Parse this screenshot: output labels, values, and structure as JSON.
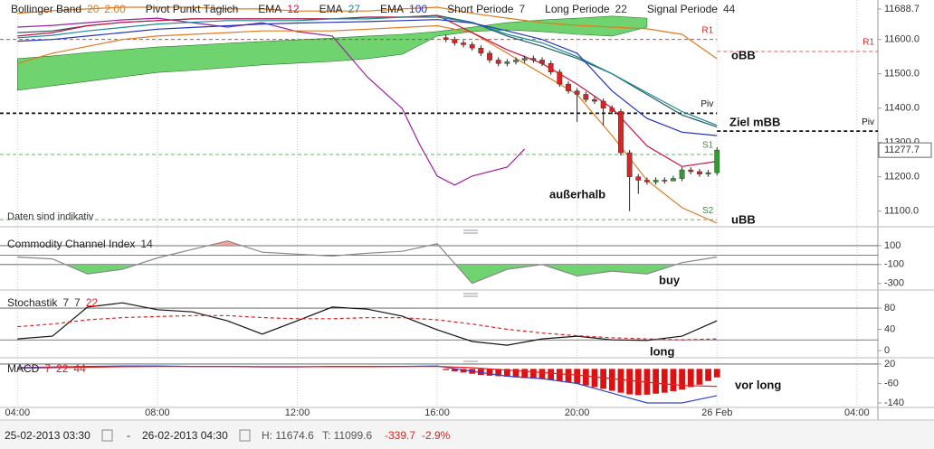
{
  "chart_data": [
    {
      "type": "candlestick",
      "xlim": [
        3.5,
        28.6
      ],
      "ylim": [
        11057,
        11715
      ],
      "yticks": [
        11688.7,
        {
          "value": 11600,
          "label": "11600.0"
        },
        {
          "value": 11500,
          "label": "11500.0"
        },
        {
          "value": 11400,
          "label": "11400.0"
        },
        {
          "value": 11300,
          "label": "11300.0"
        },
        {
          "value": 11200,
          "label": "11200.0"
        },
        {
          "value": 11100,
          "label": "11100.0"
        }
      ],
      "candles": {
        "up_color": "#2e9e2e",
        "down_color": "#dd2222",
        "x": [
          16.25,
          16.5,
          16.75,
          17,
          17.25,
          17.5,
          17.75,
          18,
          18.25,
          18.5,
          18.75,
          19,
          19.25,
          19.5,
          19.75,
          20,
          20.25,
          20.5,
          20.75,
          21,
          21.25,
          21.5,
          21.75,
          22,
          22.25,
          22.5,
          22.75,
          23,
          23.25,
          23.5,
          23.75,
          24
        ],
        "open": [
          11605,
          11600,
          11590,
          11585,
          11575,
          11560,
          11540,
          11530,
          11535,
          11540,
          11545,
          11540,
          11530,
          11505,
          11470,
          11450,
          11440,
          11425,
          11420,
          11400,
          11390,
          11270,
          11200,
          11190,
          11185,
          11190,
          11188,
          11195,
          11220,
          11215,
          11208,
          11212
        ],
        "high": [
          11613,
          11608,
          11598,
          11593,
          11583,
          11568,
          11548,
          11543,
          11548,
          11553,
          11553,
          11548,
          11538,
          11513,
          11478,
          11458,
          11448,
          11433,
          11428,
          11408,
          11398,
          11278,
          11208,
          11198,
          11198,
          11198,
          11203,
          11228,
          11228,
          11223,
          11220,
          11285.7
        ],
        "low": [
          11592,
          11582,
          11577,
          11567,
          11552,
          11532,
          11522,
          11522,
          11527,
          11532,
          11532,
          11522,
          11497,
          11462,
          11442,
          11360,
          11417,
          11412,
          11350,
          11382,
          11262,
          11100,
          11150,
          11177,
          11177,
          11180,
          11187,
          11187,
          11207,
          11200,
          11200,
          11204
        ],
        "close": [
          11600,
          11590,
          11585,
          11575,
          11560,
          11540,
          11530,
          11535,
          11540,
          11545,
          11540,
          11530,
          11505,
          11470,
          11450,
          11440,
          11425,
          11420,
          11400,
          11390,
          11270,
          11200,
          11190,
          11185,
          11190,
          11188,
          11195,
          11220,
          11215,
          11208,
          11212,
          11277.7
        ]
      },
      "x": [
        4,
        5,
        6,
        7,
        8,
        9,
        10,
        11,
        12,
        13,
        14,
        15,
        16,
        17,
        18,
        19,
        20,
        21,
        22,
        23,
        24
      ],
      "bollinger": {
        "name": "Bollinger Band",
        "params": [
          "20",
          "2.00"
        ],
        "color": "#e07b20",
        "mid_color": "#2a5a5a",
        "upper": [
          11676,
          11684,
          11689,
          11694,
          11694,
          11694,
          11689,
          11689,
          11683,
          11683,
          11683,
          11689,
          11694,
          11676,
          11662,
          11649,
          11641,
          11636,
          11631,
          11615,
          11544
        ],
        "middle": [
          11620,
          11625,
          11640,
          11650,
          11655,
          11660,
          11660,
          11660,
          11660,
          11660,
          11665,
          11665,
          11670,
          11650,
          11610,
          11580,
          11545,
          11500,
          11440,
          11380,
          11345
        ],
        "lower": [
          11530,
          11560,
          11580,
          11600,
          11610,
          11615,
          11620,
          11625,
          11625,
          11625,
          11630,
          11635,
          11640,
          11620,
          11560,
          11500,
          11440,
          11320,
          11190,
          11110,
          11065
        ]
      },
      "series": [
        {
          "name": "EMA",
          "param": "12",
          "color": "#cc1144",
          "values": [
            11610,
            11620,
            11640,
            11650,
            11655,
            11660,
            11660,
            11660,
            11660,
            11660,
            11665,
            11665,
            11670,
            11620,
            11570,
            11530,
            11470,
            11400,
            11290,
            11230,
            11245
          ]
        },
        {
          "name": "EMA",
          "param": "27",
          "color": "#1a8a9a",
          "values": [
            11605,
            11612,
            11625,
            11635,
            11645,
            11650,
            11655,
            11655,
            11655,
            11660,
            11660,
            11665,
            11665,
            11650,
            11615,
            11590,
            11550,
            11500,
            11445,
            11390,
            11350
          ]
        },
        {
          "name": "EMA",
          "param": "100",
          "color": "#2233bb",
          "values": [
            11595,
            11600,
            11610,
            11620,
            11630,
            11635,
            11640,
            11645,
            11648,
            11650,
            11652,
            11655,
            11658,
            11648,
            11625,
            11600,
            11560,
            11450,
            11370,
            11330,
            11320
          ]
        }
      ],
      "cloud": {
        "color": "#6fd46f",
        "x": [
          4,
          5,
          6,
          7,
          8,
          9,
          10,
          11,
          12,
          13,
          14,
          15,
          16,
          17,
          18,
          19,
          20,
          21,
          22
        ],
        "upper": [
          11544,
          11552,
          11562,
          11570,
          11578,
          11583,
          11589,
          11594,
          11599,
          11604,
          11610,
          11615,
          11623,
          11636,
          11649,
          11657,
          11662,
          11668,
          11662
        ],
        "lower": [
          11452,
          11465,
          11478,
          11491,
          11504,
          11510,
          11518,
          11526,
          11531,
          11536,
          11544,
          11557,
          11610,
          11623,
          11628,
          11623,
          11615,
          11610,
          11636
        ]
      },
      "lagging": {
        "color": "#9a1fa0",
        "x": [
          4,
          5,
          6,
          7,
          8,
          9,
          10,
          11,
          12,
          13,
          14,
          15,
          15.5,
          16,
          16.5,
          17,
          18,
          18.5
        ],
        "values": [
          11636,
          11641,
          11649,
          11657,
          11662,
          11649,
          11636,
          11649,
          11623,
          11610,
          11491,
          11399,
          11294,
          11202,
          11176,
          11202,
          11228,
          11281
        ]
      },
      "pivot": {
        "name": "Pivot Punkt Täglich",
        "days": [
          {
            "from": 3.5,
            "to": 24,
            "levels": [
              {
                "label": "R1",
                "value": 11600,
                "color": "#dd2222"
              },
              {
                "label": "Piv",
                "value": 11385,
                "color": "#111111"
              },
              {
                "label": "S1",
                "value": 11265,
                "color": "#2e9e2e"
              },
              {
                "label": "S2",
                "value": 11075,
                "color": "#2e9e2e"
              }
            ]
          },
          {
            "from": 24,
            "to": 28.6,
            "levels": [
              {
                "label": "R1",
                "value": 11565,
                "color": "#dd2222"
              },
              {
                "label": "Piv",
                "value": 11333,
                "color": "#111111"
              }
            ]
          }
        ]
      },
      "legend_extra": [
        {
          "name": "Short Periode",
          "params": [
            "7"
          ]
        },
        {
          "name": "Long Periode",
          "params": [
            "22"
          ]
        },
        {
          "name": "Signal Periode",
          "params": [
            "44"
          ]
        }
      ],
      "note": "Daten sind indikativ",
      "annotations": [
        "oBB",
        "Ziel mBB",
        "außerhalb",
        "uBB"
      ]
    },
    {
      "type": "line",
      "title": "Commodity Channel Index",
      "params": [
        "14"
      ],
      "param_colors": [
        "#333333"
      ],
      "xlim": [
        3.5,
        28.6
      ],
      "ylim": [
        -360,
        195
      ],
      "yticks": [
        100,
        -100,
        -300
      ],
      "levels": [
        100,
        0,
        -100
      ],
      "fill_above": {
        "level": 100,
        "color": "#f2a0a0"
      },
      "fill_below": {
        "level": -100,
        "color": "#6fd46f"
      },
      "x": [
        4,
        5,
        6,
        7,
        8,
        9,
        10,
        11,
        12,
        13,
        14,
        15,
        16,
        17,
        18,
        19,
        20,
        21,
        22,
        23,
        24
      ],
      "series": [
        {
          "color": "#888888",
          "values": [
            -20,
            -40,
            -200,
            -150,
            -30,
            60,
            150,
            30,
            10,
            -10,
            20,
            40,
            120,
            -300,
            -150,
            -100,
            -220,
            -170,
            -200,
            -80,
            -20
          ]
        }
      ],
      "annotations": [
        "buy"
      ]
    },
    {
      "type": "line",
      "title": "Stochastik",
      "params": [
        "7",
        "7",
        "22"
      ],
      "param_colors": [
        "#333333",
        "#333333",
        "#dd2222"
      ],
      "xlim": [
        3.5,
        28.6
      ],
      "ylim": [
        -12,
        104
      ],
      "yticks": [
        80,
        40,
        0
      ],
      "levels": [
        80,
        20
      ],
      "x": [
        4,
        5,
        6,
        7,
        8,
        9,
        10,
        11,
        12,
        13,
        14,
        15,
        16,
        17,
        18,
        19,
        20,
        21,
        22,
        23,
        24
      ],
      "series": [
        {
          "color": "#111111",
          "values": [
            22,
            27,
            82,
            90,
            77,
            73,
            56,
            31,
            56,
            82,
            78,
            65,
            39,
            17,
            10,
            22,
            27,
            20,
            19,
            27,
            56
          ]
        },
        {
          "color": "#dd2222",
          "dash": true,
          "values": [
            45,
            50,
            58,
            62,
            64,
            66,
            66,
            62,
            60,
            60,
            62,
            62,
            58,
            50,
            40,
            33,
            28,
            24,
            22,
            20,
            22
          ]
        }
      ],
      "annotations": [
        "long"
      ]
    },
    {
      "type": "bar",
      "title": "MACD",
      "params": [
        "7",
        "22",
        "44"
      ],
      "param_colors": [
        "#dd2222",
        "#dd2222",
        "#dd2222"
      ],
      "xlim": [
        3.5,
        28.6
      ],
      "ylim": [
        -155,
        31
      ],
      "yticks": [
        20,
        -60,
        -140
      ],
      "levels": [
        20
      ],
      "xticks": [
        {
          "value": 4,
          "label": "04:00"
        },
        {
          "value": 8,
          "label": "08:00"
        },
        {
          "value": 12,
          "label": "12:00"
        },
        {
          "value": 16,
          "label": "16:00"
        },
        {
          "value": 20,
          "label": "20:00"
        },
        {
          "value": 24,
          "label": "26 Feb"
        },
        {
          "value": 28,
          "label": "04:00"
        }
      ],
      "xgrid": true,
      "bars": {
        "color": "#dd1111",
        "x": [
          16.25,
          16.5,
          16.75,
          17,
          17.25,
          17.5,
          17.75,
          18,
          18.25,
          18.5,
          18.75,
          19,
          19.25,
          19.5,
          19.75,
          20,
          20.25,
          20.5,
          20.75,
          21,
          21.25,
          21.5,
          21.75,
          22,
          22.25,
          22.5,
          22.75,
          23,
          23.25,
          23.5,
          23.75,
          24
        ],
        "values": [
          -5,
          -10,
          -15,
          -20,
          -25,
          -28,
          -30,
          -32,
          -35,
          -38,
          -40,
          -42,
          -45,
          -50,
          -55,
          -60,
          -68,
          -75,
          -82,
          -90,
          -98,
          -105,
          -108,
          -106,
          -102,
          -98,
          -92,
          -85,
          -75,
          -65,
          -50,
          -35
        ]
      },
      "x": [
        4,
        5,
        6,
        7,
        8,
        9,
        10,
        11,
        12,
        13,
        14,
        15,
        16,
        17,
        18,
        19,
        20,
        21,
        22,
        23,
        24
      ],
      "series": [
        {
          "color": "#3344cc",
          "values": [
            5,
            8,
            10,
            12,
            12,
            10,
            10,
            8,
            8,
            10,
            10,
            10,
            12,
            -10,
            -30,
            -40,
            -60,
            -100,
            -140,
            -140,
            -110
          ]
        },
        {
          "color": "#dd2222",
          "values": [
            3,
            5,
            7,
            9,
            10,
            10,
            10,
            9,
            9,
            9,
            9,
            10,
            10,
            5,
            -5,
            -15,
            -25,
            -40,
            -55,
            -68,
            -72
          ]
        }
      ],
      "annotations": [
        "vor long"
      ]
    }
  ],
  "footer": {
    "from": "25-02-2013 03:30",
    "separator": "-",
    "to": "26-02-2013 04:30",
    "high": "H: 11674.6",
    "low": "T: 11099.6",
    "change": "-339.7",
    "change_pct": "-2.9%"
  }
}
